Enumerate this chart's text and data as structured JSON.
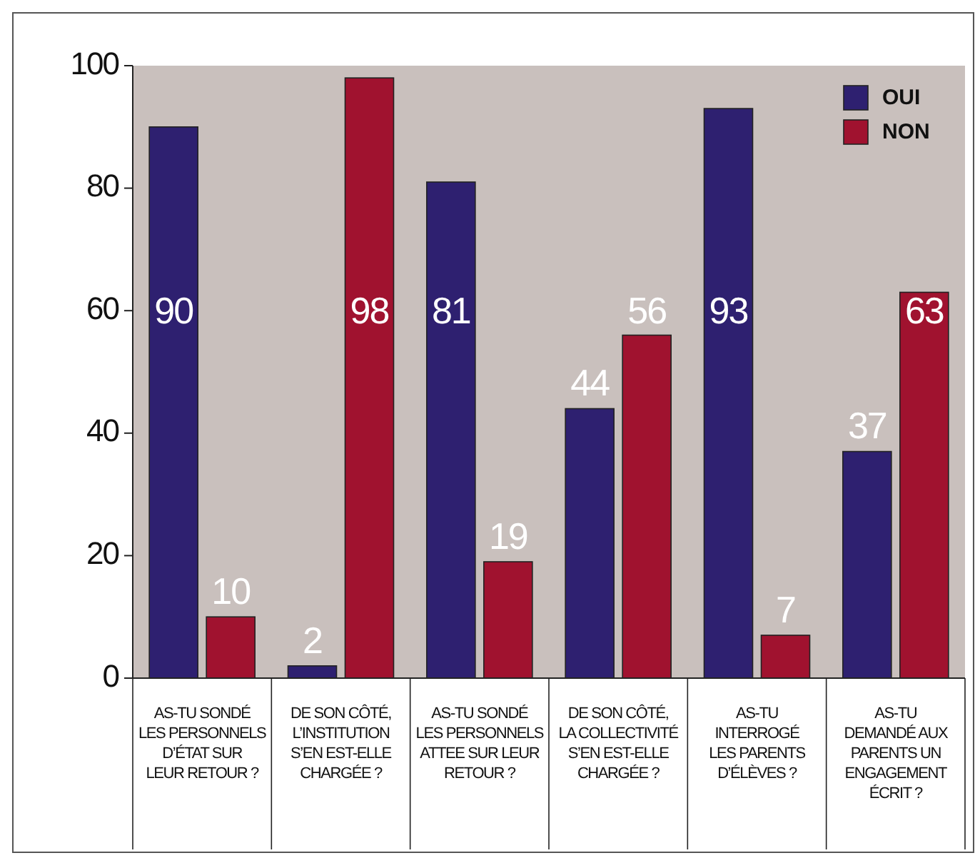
{
  "chart_data": {
    "type": "bar",
    "categories": [
      "AS-TU SONDÉ\nLES PERSONNELS\nD’ÉTAT SUR\nLEUR RETOUR ?",
      "DE SON CÔTÉ,\nL’INSTITUTION\nS’EN EST-ELLE\nCHARGÉE ?",
      "AS-TU SONDÉ\nLES PERSONNELS\nATTEE SUR LEUR\nRETOUR ?",
      "DE SON CÔTÉ,\nLA COLLECTIVITÉ\nS’EN EST-ELLE\nCHARGÉE ?",
      "AS-TU\nINTERROGÉ\nLES PARENTS\nD’ÉLÈVES ?",
      "AS-TU\nDEMANDÉ AUX\nPARENTS UN\nENGAGEMENT\nÉCRIT ?"
    ],
    "series": [
      {
        "name": "OUI",
        "color": "#2e2070",
        "values": [
          90,
          2,
          81,
          44,
          93,
          37
        ]
      },
      {
        "name": "NON",
        "color": "#a0122f",
        "values": [
          10,
          98,
          19,
          56,
          7,
          63
        ]
      }
    ],
    "ylim": [
      0,
      100
    ],
    "yticks": [
      0,
      20,
      40,
      60,
      80,
      100
    ],
    "data_labels": true,
    "legend": "top right",
    "grid": false
  }
}
